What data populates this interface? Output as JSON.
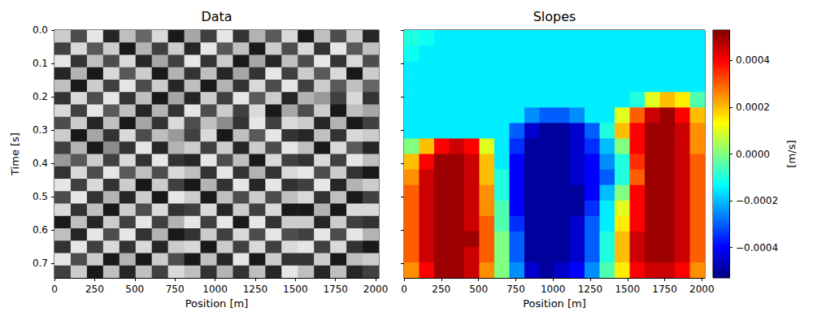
{
  "chart_data": [
    {
      "type": "heatmap",
      "title": "Data",
      "xlabel": "Position [m]",
      "ylabel": "Time [s]",
      "color": "gray",
      "xlim": [
        0,
        2020
      ],
      "ylim": [
        0.744,
        0
      ],
      "xticks": [
        0,
        250,
        500,
        750,
        1000,
        1250,
        1500,
        1750,
        2000
      ],
      "yticks": [
        {
          "value": 0,
          "label": "0.0"
        },
        0.1,
        0.2,
        0.3,
        0.4,
        0.5,
        0.6,
        0.7
      ],
      "value_range": [
        -1,
        1
      ],
      "x_edges": [
        0,
        101,
        202,
        303,
        404,
        505,
        606,
        707,
        808,
        909,
        1010,
        1111,
        1212,
        1313,
        1414,
        1515,
        1616,
        1717,
        1818,
        1919,
        2020
      ],
      "y_edges": [
        0,
        0.0372,
        0.0744,
        0.1116,
        0.1488,
        0.186,
        0.2232,
        0.2604,
        0.2976,
        0.3348,
        0.372,
        0.4092,
        0.4464,
        0.4836,
        0.5208,
        0.558,
        0.5952,
        0.6324,
        0.6696,
        0.7068,
        0.744
      ],
      "values": [
        [
          0.6,
          -0.4,
          0.8,
          -0.7,
          0.5,
          -0.2,
          0.7,
          -0.8,
          0.3,
          -0.5,
          0.8,
          -0.6,
          0.4,
          -0.3,
          0.7,
          -0.8,
          0.5,
          -0.4,
          0.6,
          -0.7
        ],
        [
          -0.5,
          0.7,
          -0.3,
          0.6,
          -0.8,
          0.4,
          -0.5,
          0.6,
          -0.7,
          0.8,
          -0.3,
          0.5,
          -0.8,
          0.6,
          -0.4,
          0.7,
          -0.6,
          0.8,
          -0.3,
          0.5
        ],
        [
          0.8,
          -0.6,
          0.5,
          -0.4,
          0.7,
          -0.7,
          0.3,
          -0.5,
          0.8,
          -0.6,
          0.6,
          -0.8,
          0.3,
          -0.7,
          0.5,
          -0.4,
          0.8,
          -0.6,
          0.7,
          -0.4
        ],
        [
          -0.7,
          0.4,
          -0.8,
          0.7,
          -0.3,
          0.6,
          -0.8,
          0.4,
          -0.6,
          0.5,
          -0.7,
          0.3,
          -0.6,
          0.8,
          -0.5,
          0.6,
          -0.3,
          0.7,
          -0.8,
          0.6
        ],
        [
          0.5,
          -0.8,
          0.6,
          -0.5,
          0.8,
          -0.4,
          0.6,
          -0.7,
          0.5,
          -0.8,
          0.4,
          -0.6,
          0.7,
          -0.4,
          0.8,
          -0.5,
          0.6,
          -0.3,
          0.5,
          -0.2
        ],
        [
          -0.6,
          0.7,
          -0.4,
          0.8,
          -0.6,
          0.5,
          -0.8,
          0.3,
          -0.7,
          0.6,
          -0.5,
          0.8,
          -0.3,
          0.6,
          -0.7,
          0.4,
          0.2,
          -0.5,
          0.7,
          -0.6
        ],
        [
          0.7,
          -0.5,
          0.8,
          -0.3,
          0.5,
          -0.7,
          0.4,
          -0.6,
          0.8,
          -0.4,
          0.6,
          -0.5,
          0.7,
          -0.8,
          0.3,
          -0.4,
          0.6,
          -0.8,
          0.5,
          0.3
        ],
        [
          -0.4,
          0.6,
          -0.7,
          0.5,
          -0.8,
          0.3,
          -0.6,
          0.7,
          -0.4,
          0.5,
          0.1,
          -0.6,
          0.8,
          -0.5,
          0.7,
          0.6,
          -0.7,
          0.4,
          -0.8,
          -0.5
        ],
        [
          0.6,
          -0.8,
          0.3,
          -0.6,
          0.7,
          -0.4,
          0.5,
          0.2,
          -0.5,
          0.7,
          -0.8,
          0.5,
          -0.3,
          0.8,
          -0.6,
          -0.7,
          0.5,
          -0.6,
          0.7,
          0.6
        ],
        [
          -0.5,
          0.4,
          -0.8,
          0.1,
          -0.6,
          0.8,
          -0.7,
          0.4,
          0.6,
          -0.5,
          0.6,
          -0.7,
          0.6,
          -0.4,
          0.8,
          0.5,
          -0.8,
          0.7,
          -0.3,
          -0.7
        ],
        [
          0.2,
          -0.3,
          0.6,
          -0.5,
          0.7,
          -0.6,
          0.8,
          -0.6,
          -0.7,
          0.8,
          -0.4,
          0.5,
          -0.8,
          0.7,
          -0.5,
          -0.6,
          0.7,
          -0.5,
          0.8,
          0.5
        ],
        [
          -0.6,
          0.7,
          -0.4,
          0.8,
          -0.3,
          0.5,
          -0.4,
          0.7,
          0.5,
          -0.6,
          0.8,
          -0.6,
          0.4,
          -0.6,
          0.7,
          0.8,
          -0.4,
          0.6,
          -0.6,
          -0.8
        ],
        [
          0.8,
          -0.5,
          0.7,
          -0.6,
          0.6,
          -0.8,
          0.6,
          -0.5,
          -0.8,
          0.4,
          -0.6,
          0.8,
          -0.7,
          0.8,
          -0.6,
          -0.5,
          0.8,
          -0.7,
          0.4,
          0.6
        ],
        [
          -0.4,
          0.8,
          -0.6,
          0.4,
          -0.7,
          0.6,
          -0.8,
          0.8,
          0.6,
          -0.8,
          0.5,
          -0.4,
          0.6,
          -0.4,
          0.5,
          0.7,
          -0.6,
          0.5,
          -0.8,
          -0.5
        ],
        [
          0.7,
          -0.6,
          0.5,
          -0.8,
          0.6,
          -0.4,
          0.7,
          -0.6,
          -0.5,
          0.7,
          -0.7,
          0.6,
          -0.5,
          0.7,
          -0.8,
          -0.8,
          0.4,
          -0.8,
          0.7,
          0.7
        ],
        [
          -0.8,
          0.5,
          -0.7,
          0.6,
          -0.5,
          0.8,
          -0.5,
          0.4,
          0.8,
          -0.5,
          0.8,
          -0.8,
          0.8,
          -0.6,
          0.6,
          0.6,
          -0.7,
          0.6,
          -0.5,
          -0.6
        ],
        [
          0.5,
          -0.7,
          0.8,
          -0.4,
          0.8,
          -0.6,
          0.4,
          -0.8,
          -0.6,
          0.6,
          -0.5,
          0.7,
          -0.4,
          0.8,
          -0.4,
          -0.5,
          0.8,
          -0.4,
          0.8,
          0.4
        ],
        [
          -0.6,
          0.8,
          -0.5,
          0.7,
          -0.6,
          0.7,
          -0.7,
          0.6,
          0.7,
          -0.8,
          0.6,
          -0.5,
          0.7,
          -0.5,
          0.7,
          0.8,
          -0.5,
          0.7,
          -0.6,
          -0.8
        ],
        [
          0.8,
          -0.4,
          0.6,
          -0.8,
          0.4,
          -0.8,
          0.6,
          -0.4,
          -0.8,
          0.5,
          -0.7,
          0.8,
          -0.8,
          0.6,
          -0.6,
          -0.6,
          0.6,
          -0.8,
          0.5,
          0.6
        ],
        [
          -0.5,
          0.6,
          -0.8,
          0.5,
          -0.7,
          0.5,
          -0.5,
          0.7,
          0.5,
          -0.6,
          0.4,
          -0.6,
          0.5,
          -0.7,
          0.8,
          0.5,
          -0.7,
          0.5,
          -0.7,
          -0.5
        ]
      ]
    },
    {
      "type": "heatmap",
      "title": "Slopes",
      "xlabel": "Position [m]",
      "color": "jet",
      "tick_labels": "x",
      "xlim": [
        0,
        2020
      ],
      "ylim": [
        0.744,
        0
      ],
      "xticks": [
        0,
        250,
        500,
        750,
        1000,
        1250,
        1500,
        1750,
        2000
      ],
      "yticks": [
        {
          "value": 0,
          "label": "0.0"
        },
        0.1,
        0.2,
        0.3,
        0.4,
        0.5,
        0.6,
        0.7
      ],
      "colorbar": {
        "label": "[m/s]",
        "range": [
          -0.00053,
          0.00053
        ],
        "ticks": [
          {
            "value": -0.0004,
            "label": "−0.0004"
          },
          {
            "value": -0.0002,
            "label": "−0.0002"
          },
          {
            "value": 0,
            "label": "0.0000"
          },
          0.0002,
          0.0004
        ]
      },
      "x_edges": [
        0,
        101,
        202,
        303,
        404,
        505,
        606,
        707,
        808,
        909,
        1010,
        1111,
        1212,
        1313,
        1414,
        1515,
        1616,
        1717,
        1818,
        1919,
        2020
      ],
      "y_edges": [
        0,
        0.0465,
        0.093,
        0.1395,
        0.186,
        0.2325,
        0.279,
        0.3255,
        0.372,
        0.4185,
        0.465,
        0.5115,
        0.558,
        0.6045,
        0.651,
        0.6975,
        0.744
      ],
      "values": [
        [
          -0.0001,
          -0.00012,
          -0.00015,
          -0.00015,
          -0.00015,
          -0.00015,
          -0.00015,
          -0.00015,
          -0.00015,
          -0.00015,
          -0.00015,
          -0.00015,
          -0.00015,
          -0.00015,
          -0.00015,
          -0.00015,
          -0.00015,
          -0.00015,
          -0.00015,
          -0.00015
        ],
        [
          -0.00012,
          -0.00015,
          -0.00015,
          -0.00015,
          -0.00015,
          -0.00015,
          -0.00015,
          -0.00015,
          -0.00015,
          -0.00015,
          -0.00015,
          -0.00015,
          -0.00015,
          -0.00015,
          -0.00015,
          -0.00015,
          -0.00015,
          -0.00015,
          -0.00015,
          -0.00015
        ],
        [
          -0.00015,
          -0.00015,
          -0.00015,
          -0.00015,
          -0.00015,
          -0.00015,
          -0.00015,
          -0.00015,
          -0.00015,
          -0.00015,
          -0.00015,
          -0.00015,
          -0.00015,
          -0.00015,
          -0.00015,
          -0.00015,
          -0.00015,
          -0.00015,
          -0.00015,
          -0.00015
        ],
        [
          -0.00015,
          -0.00015,
          -0.00015,
          -0.00015,
          -0.00015,
          -0.00015,
          -0.00015,
          -0.00015,
          -0.00015,
          -0.00015,
          -0.00015,
          -0.00015,
          -0.00015,
          -0.00015,
          -0.00015,
          -0.00015,
          -0.00015,
          -0.00015,
          -0.00015,
          -0.00015
        ],
        [
          -0.00015,
          -0.00015,
          -0.00015,
          -0.00015,
          -0.00015,
          -0.00015,
          -0.00015,
          -0.00015,
          -0.00015,
          -0.00015,
          -0.00015,
          -0.00015,
          -0.00015,
          -0.00015,
          -0.00015,
          -0.0001,
          0.0001,
          0.0002,
          0.00015,
          -5e-05
        ],
        [
          -0.00015,
          -0.00015,
          -0.00015,
          -0.00015,
          -0.00015,
          -0.00015,
          -0.00015,
          -0.00015,
          -0.00025,
          -0.0003,
          -0.0003,
          -0.00025,
          -0.00015,
          -0.00015,
          0.0001,
          0.0003,
          0.00045,
          0.0005,
          0.0004,
          0.0002
        ],
        [
          -0.00015,
          -0.00015,
          -0.00015,
          -0.00015,
          -0.00015,
          -0.00015,
          -0.00015,
          -0.0003,
          -0.00045,
          -0.0005,
          -0.0005,
          -0.00045,
          -0.0003,
          -0.0001,
          0.0002,
          0.0004,
          0.0005,
          0.0005,
          0.00045,
          0.00025
        ],
        [
          0,
          0.0002,
          0.0004,
          0.00045,
          0.0004,
          0.0001,
          -0.00015,
          -0.00035,
          -0.0005,
          -0.0005,
          -0.0005,
          -0.00045,
          -0.00035,
          -0.0002,
          0,
          0.0004,
          0.0005,
          0.0005,
          0.00045,
          0.00025
        ],
        [
          0.0002,
          0.0004,
          0.0005,
          0.0005,
          0.00045,
          0.0002,
          -0.00015,
          -0.0004,
          -0.0005,
          -0.0005,
          -0.0005,
          -0.00045,
          -0.0004,
          -0.00025,
          -0.0001,
          0.00035,
          0.0005,
          0.0005,
          0.00045,
          0.0003
        ],
        [
          0.00025,
          0.00045,
          0.0005,
          0.0005,
          0.00045,
          0.0002,
          -0.0001,
          -0.0004,
          -0.0005,
          -0.0005,
          -0.0005,
          -0.00045,
          -0.0004,
          -0.0003,
          -0.0001,
          0.0003,
          0.0005,
          0.0005,
          0.00045,
          0.0003
        ],
        [
          0.0003,
          0.00045,
          0.0005,
          0.0005,
          0.00045,
          0.00025,
          -0.0001,
          -0.0004,
          -0.0005,
          -0.0005,
          -0.0005,
          -0.0005,
          -0.0004,
          -0.0002,
          0,
          0.0004,
          0.0005,
          0.0005,
          0.00045,
          0.0003
        ],
        [
          0.0003,
          0.00045,
          0.0005,
          0.0005,
          0.00045,
          0.00025,
          -5e-05,
          -0.0004,
          -0.0005,
          -0.0005,
          -0.0005,
          -0.0005,
          -0.00035,
          -0.00015,
          0.0001,
          0.0004,
          0.0005,
          0.0005,
          0.00045,
          0.0003
        ],
        [
          0.0003,
          0.00045,
          0.0005,
          0.0005,
          0.00045,
          0.0003,
          -5e-05,
          -0.00035,
          -0.0005,
          -0.0005,
          -0.0005,
          -0.00045,
          -0.0003,
          -0.00015,
          0.00015,
          0.0004,
          0.0005,
          0.0005,
          0.00045,
          0.0003
        ],
        [
          0.0003,
          0.00045,
          0.0005,
          0.0005,
          0.0005,
          0.0003,
          0,
          -0.0003,
          -0.0005,
          -0.0005,
          -0.0005,
          -0.00045,
          -0.0003,
          -0.0001,
          0.0002,
          0.00045,
          0.0005,
          0.0005,
          0.00045,
          0.0003
        ],
        [
          0.0003,
          0.00045,
          0.0005,
          0.0005,
          0.00045,
          0.0003,
          0,
          -0.0003,
          -0.0005,
          -0.0005,
          -0.0005,
          -0.00045,
          -0.0003,
          -0.0001,
          0.0002,
          0.00045,
          0.0005,
          0.0005,
          0.00045,
          0.0003
        ],
        [
          0.00025,
          0.0004,
          0.0005,
          0.0005,
          0.00045,
          0.00025,
          0,
          -0.00025,
          -0.00045,
          -0.0005,
          -0.00045,
          -0.0004,
          -0.00025,
          -5e-05,
          0.00015,
          0.0004,
          0.00045,
          0.00045,
          0.0004,
          0.00025
        ]
      ]
    }
  ]
}
